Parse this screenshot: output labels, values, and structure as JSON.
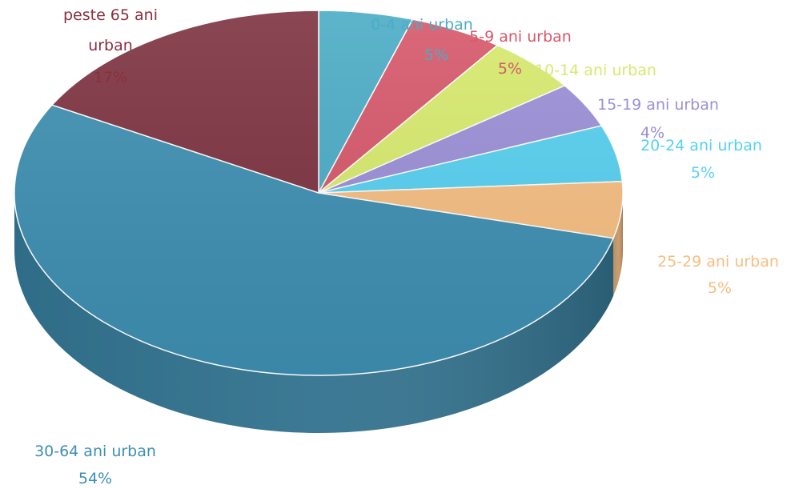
{
  "chart_data": {
    "type": "pie",
    "style": "3d",
    "slices": [
      {
        "label": "0-4 ani urban",
        "value": 5,
        "display": "5%",
        "color": "#4BACC6"
      },
      {
        "label": "5-9 ani urban",
        "value": 5,
        "display": "5%",
        "color": "#D6586A"
      },
      {
        "label": "10-14 ani urban",
        "value": 5,
        "display": "5%",
        "color": "#D7EA6D"
      },
      {
        "label": "15-19 ani urban",
        "value": 4,
        "display": "4%",
        "color": "#9B8FD6"
      },
      {
        "label": "20-24 ani urban",
        "value": 5,
        "display": "5%",
        "color": "#56D0F0"
      },
      {
        "label": "25-29 ani urban",
        "value": 5,
        "display": "5%",
        "color": "#F6BE82"
      },
      {
        "label": "30-64 ani urban",
        "value": 54,
        "display": "54%",
        "color": "#3E8FB2"
      },
      {
        "label": "peste 65 ani urban",
        "value": 17,
        "display": "17%",
        "color": "#7D3340"
      }
    ],
    "label_colors": [
      "#4BACC6",
      "#D6586A",
      "#D7EA6D",
      "#9B8FD6",
      "#56D0F0",
      "#F6BE82",
      "#3E8FB2",
      "#8B2E3E"
    ]
  }
}
